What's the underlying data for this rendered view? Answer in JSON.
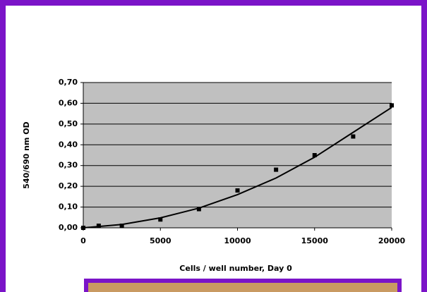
{
  "chart_data": {
    "type": "scatter",
    "x_label": "Cells / well number, Day 0",
    "y_label": "540/690 nm OD",
    "x": [
      0,
      1000,
      2500,
      5000,
      7500,
      10000,
      12500,
      15000,
      17500,
      20000
    ],
    "values": [
      0.0,
      0.01,
      0.01,
      0.04,
      0.09,
      0.18,
      0.28,
      0.35,
      0.44,
      0.59
    ],
    "color": "#000000",
    "trendline": {
      "x": [
        0,
        2500,
        5000,
        7500,
        10000,
        12500,
        15000,
        17500,
        20000
      ],
      "values": [
        0,
        0.016,
        0.048,
        0.095,
        0.16,
        0.24,
        0.34,
        0.46,
        0.58
      ]
    },
    "xlim": [
      0,
      20000
    ],
    "xticks": [
      0,
      5000,
      10000,
      15000,
      20000
    ],
    "ylim": [
      0,
      0.7
    ],
    "yticks": [
      {
        "value": 0,
        "label": "0,00"
      },
      {
        "value": 0.1,
        "label": "0,10"
      },
      {
        "value": 0.2,
        "label": "0,20"
      },
      {
        "value": 0.3,
        "label": "0,30"
      },
      {
        "value": 0.4,
        "label": "0,40"
      },
      {
        "value": 0.5,
        "label": "0,50"
      },
      {
        "value": 0.6,
        "label": "0,60"
      },
      {
        "value": 0.7,
        "label": "0,70"
      }
    ],
    "grid": true,
    "plot_background": "#c0c0c0"
  }
}
